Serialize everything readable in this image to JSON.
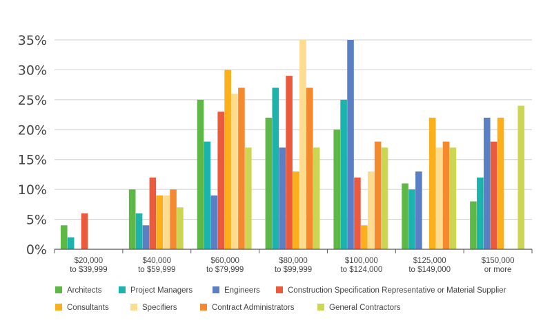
{
  "chart_data": {
    "type": "bar",
    "title": "",
    "xlabel": "",
    "ylabel": "",
    "ylim": [
      0,
      35
    ],
    "yticks": [
      {
        "value": 0,
        "label": "0%"
      },
      {
        "value": 5,
        "label": "5%"
      },
      {
        "value": 10,
        "label": "10%"
      },
      {
        "value": 15,
        "label": "15%"
      },
      {
        "value": 20,
        "label": "20%"
      },
      {
        "value": 25,
        "label": "25%"
      },
      {
        "value": 30,
        "label": "30%"
      },
      {
        "value": 35,
        "label": "35%"
      }
    ],
    "grid": true,
    "legend_position": "bottom",
    "categories": [
      [
        "$20,000",
        "to $39,999"
      ],
      [
        "$40,000",
        "to $59,999"
      ],
      [
        "$60,000",
        "to $79,999"
      ],
      [
        "$80,000",
        "to $99,999"
      ],
      [
        "$100,000",
        "to $124,000"
      ],
      [
        "$125,000",
        "to $149,000"
      ],
      [
        "$150,000",
        "or more"
      ]
    ],
    "series": [
      {
        "name": "Architects",
        "color": "#5db846",
        "values": [
          4,
          10,
          25,
          22,
          20,
          11,
          8
        ]
      },
      {
        "name": "Project Managers",
        "color": "#1db3ad",
        "values": [
          2,
          6,
          18,
          27,
          25,
          10,
          12
        ]
      },
      {
        "name": "Engineers",
        "color": "#5a7fc4",
        "values": [
          0,
          4,
          9,
          17,
          35,
          13,
          22
        ]
      },
      {
        "name": "Construction Specification Representative or Material Supplier",
        "color": "#ec5a3d",
        "values": [
          6,
          12,
          23,
          29,
          12,
          0,
          18
        ]
      },
      {
        "name": "Consultants",
        "color": "#fbaf1b",
        "values": [
          0,
          9,
          30,
          13,
          4,
          22,
          22
        ]
      },
      {
        "name": "Specifiers",
        "color": "#fddb8f",
        "values": [
          0,
          9,
          26,
          35,
          13,
          17,
          0
        ]
      },
      {
        "name": "Contract Administrators",
        "color": "#f5892e",
        "values": [
          0,
          10,
          27,
          27,
          18,
          18,
          0
        ]
      },
      {
        "name": "General Contractors",
        "color": "#cdd653",
        "values": [
          0,
          7,
          17,
          17,
          17,
          17,
          24
        ]
      }
    ]
  }
}
